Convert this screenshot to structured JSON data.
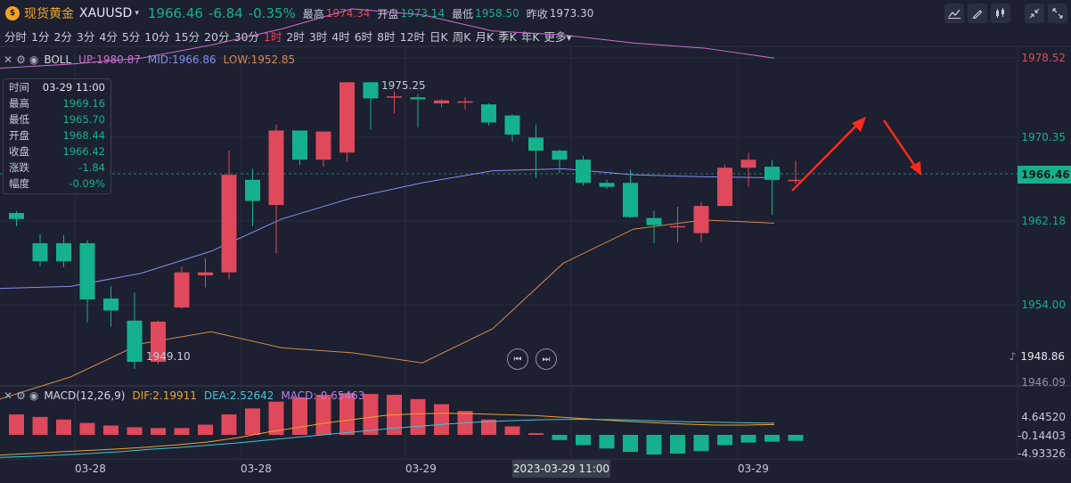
{
  "header": {
    "coin_glyph": "$",
    "name": "现货黄金",
    "code": "XAUUSD",
    "caret": "▾",
    "price": "1966.46",
    "change": "-6.84",
    "change_pct": "-0.35%",
    "stats": [
      {
        "label": "最高",
        "value": "1974.34",
        "color": "red"
      },
      {
        "label": "开盘",
        "value": "1973.14",
        "color": "green"
      },
      {
        "label": "最低",
        "value": "1958.50",
        "color": "green"
      },
      {
        "label": "昨收",
        "value": "1973.30",
        "color": "white"
      }
    ]
  },
  "toolbar": {
    "icons": [
      "line-chart-icon",
      "draw-pen-icon",
      "candle-type-icon",
      "collapse-icon",
      "fullscreen-icon"
    ]
  },
  "periods": [
    "分时",
    "1分",
    "2分",
    "3分",
    "4分",
    "5分",
    "10分",
    "15分",
    "20分",
    "30分",
    "1时",
    "2时",
    "3时",
    "4时",
    "6时",
    "8时",
    "12时",
    "日K",
    "周K",
    "月K",
    "季K",
    "年K",
    "更多▾"
  ],
  "active_period": "1时",
  "boll": {
    "name": "BOLL",
    "up": "UP:1980.87",
    "mid": "MID:1966.86",
    "low": "LOW:1952.85"
  },
  "infobox": {
    "rows": [
      {
        "label": "时间",
        "value": "03-29 11:00"
      },
      {
        "label": "最高",
        "value": "1969.16"
      },
      {
        "label": "最低",
        "value": "1965.70"
      },
      {
        "label": "开盘",
        "value": "1968.44"
      },
      {
        "label": "收盘",
        "value": "1966.42"
      },
      {
        "label": "涨跌",
        "value": "-1.84"
      },
      {
        "label": "幅度",
        "value": "-0.09%"
      }
    ]
  },
  "price_axis": {
    "labels": [
      "1978.52",
      "1970.35",
      "1962.18",
      "1954.00",
      "1946.09"
    ],
    "current": "1966.46",
    "low_badge": "1948.86"
  },
  "annotations": {
    "high": "1975.25",
    "low": "1949.10"
  },
  "macd": {
    "name": "MACD(12,26,9)",
    "dif": "DIF:2.19911",
    "dea": "DEA:2.52642",
    "macd": "MACD:-0.65463",
    "axis": [
      "4.64520",
      "-0.14403",
      "-4.93326"
    ]
  },
  "x_axis": {
    "labels": [
      "03-28",
      "03-28",
      "03-29",
      "03-29"
    ],
    "cursor": "2023-03-29 11:00"
  },
  "colors": {
    "up": "#e0485b",
    "down": "#15b18c",
    "boll_up": "#d06fce",
    "boll_mid": "#8b8cf0",
    "boll_low": "#d7884d",
    "dif": "#f0a32a",
    "dea": "#3ec6d8",
    "arrow": "#ff2a1a"
  },
  "chart_data": {
    "type": "candlestick",
    "unit": "USD",
    "y_range": [
      1946.09,
      1978.52
    ],
    "candles": [
      {
        "o": 1963.1,
        "c": 1962.5,
        "h": 1963.3,
        "l": 1961.8
      },
      {
        "o": 1960.1,
        "c": 1958.3,
        "h": 1961.0,
        "l": 1957.8
      },
      {
        "o": 1960.1,
        "c": 1958.3,
        "h": 1960.9,
        "l": 1957.7
      },
      {
        "o": 1960.1,
        "c": 1954.5,
        "h": 1960.4,
        "l": 1952.2
      },
      {
        "o": 1954.6,
        "c": 1953.4,
        "h": 1955.8,
        "l": 1951.8
      },
      {
        "o": 1952.4,
        "c": 1948.3,
        "h": 1955.2,
        "l": 1947.6
      },
      {
        "o": 1948.3,
        "c": 1952.3,
        "h": 1952.4,
        "l": 1948.1
      },
      {
        "o": 1953.7,
        "c": 1957.2,
        "h": 1957.8,
        "l": 1953.6
      },
      {
        "o": 1956.9,
        "c": 1957.2,
        "h": 1958.6,
        "l": 1955.7
      },
      {
        "o": 1957.2,
        "c": 1966.9,
        "h": 1969.3,
        "l": 1956.5
      },
      {
        "o": 1966.4,
        "c": 1964.3,
        "h": 1967.5,
        "l": 1961.8
      },
      {
        "o": 1963.9,
        "c": 1971.3,
        "h": 1971.9,
        "l": 1959.1
      },
      {
        "o": 1971.3,
        "c": 1968.4,
        "h": 1971.3,
        "l": 1967.9
      },
      {
        "o": 1968.4,
        "c": 1971.2,
        "h": 1971.2,
        "l": 1967.7
      },
      {
        "o": 1969.1,
        "c": 1976.1,
        "h": 1976.1,
        "l": 1968.2
      },
      {
        "o": 1976.1,
        "c": 1974.5,
        "h": 1976.1,
        "l": 1971.4
      },
      {
        "o": 1974.6,
        "c": 1974.7,
        "h": 1975.2,
        "l": 1973.0
      },
      {
        "o": 1974.6,
        "c": 1974.4,
        "h": 1974.9,
        "l": 1971.6
      },
      {
        "o": 1974.0,
        "c": 1974.3,
        "h": 1974.4,
        "l": 1973.6
      },
      {
        "o": 1974.2,
        "c": 1974.2,
        "h": 1974.6,
        "l": 1973.4
      },
      {
        "o": 1973.9,
        "c": 1972.1,
        "h": 1974.0,
        "l": 1971.8
      },
      {
        "o": 1972.8,
        "c": 1970.9,
        "h": 1972.9,
        "l": 1970.2
      },
      {
        "o": 1970.6,
        "c": 1969.3,
        "h": 1971.9,
        "l": 1966.6
      },
      {
        "o": 1969.3,
        "c": 1968.4,
        "h": 1969.4,
        "l": 1967.1
      },
      {
        "o": 1968.4,
        "c": 1966.1,
        "h": 1968.8,
        "l": 1965.8
      },
      {
        "o": 1966.1,
        "c": 1965.7,
        "h": 1966.4,
        "l": 1965.5
      },
      {
        "o": 1966.1,
        "c": 1962.7,
        "h": 1967.4,
        "l": 1962.6
      },
      {
        "o": 1962.6,
        "c": 1961.9,
        "h": 1963.3,
        "l": 1960.1
      },
      {
        "o": 1961.8,
        "c": 1961.8,
        "h": 1963.7,
        "l": 1960.2
      },
      {
        "o": 1961.1,
        "c": 1963.8,
        "h": 1964.2,
        "l": 1960.2
      },
      {
        "o": 1963.8,
        "c": 1967.6,
        "h": 1967.9,
        "l": 1963.8
      },
      {
        "o": 1967.6,
        "c": 1968.4,
        "h": 1969.1,
        "l": 1965.7
      },
      {
        "o": 1967.7,
        "c": 1966.4,
        "h": 1968.4,
        "l": 1962.9
      },
      {
        "o": 1966.4,
        "c": 1966.4,
        "h": 1968.3,
        "l": 1966.0
      }
    ],
    "boll_up": [
      1977.5,
      1977.9,
      1978.5,
      1979.8,
      1981.4,
      1983.4,
      1982.8,
      1981.2,
      1980.8,
      1980.0,
      1979.5,
      1978.5
    ],
    "boll_mid": [
      1955.6,
      1955.8,
      1957.1,
      1959.3,
      1962.5,
      1964.6,
      1966.1,
      1967.3,
      1967.5,
      1966.9,
      1966.7,
      1966.6
    ],
    "boll_low": [
      1944.6,
      1946.8,
      1950.1,
      1951.3,
      1949.7,
      1949.2,
      1948.2,
      1951.6,
      1958.1,
      1961.5,
      1962.4,
      1962.1
    ],
    "macd_hist": [
      2.4,
      2.1,
      1.8,
      1.4,
      1.1,
      0.9,
      0.8,
      0.8,
      1.2,
      2.4,
      3.1,
      3.9,
      4.4,
      4.7,
      4.9,
      4.8,
      4.7,
      4.2,
      3.6,
      2.8,
      1.8,
      1.0,
      0.2,
      -0.6,
      -1.2,
      -1.6,
      -2.0,
      -2.3,
      -2.2,
      -1.9,
      -1.2,
      -0.9,
      -0.8,
      -0.7
    ],
    "dif": [
      -4.3,
      -4.0,
      -3.6,
      -3.3,
      -3.0,
      -2.6,
      -2.1,
      -1.5,
      -0.6,
      0.6,
      1.6,
      2.6,
      3.4,
      4.2,
      4.5,
      4.6,
      4.5,
      4.3,
      4.1,
      3.7,
      3.3,
      2.9,
      2.6,
      2.3,
      2.1,
      2.1,
      2.2
    ],
    "dea": [
      -4.8,
      -4.6,
      -4.3,
      -4.0,
      -3.6,
      -3.1,
      -2.7,
      -2.2,
      -1.7,
      -1.1,
      -0.5,
      0.1,
      0.7,
      1.3,
      1.8,
      2.3,
      2.7,
      3.0,
      3.2,
      3.3,
      3.3,
      3.2,
      3.0,
      2.8,
      2.7,
      2.6,
      2.5
    ]
  }
}
